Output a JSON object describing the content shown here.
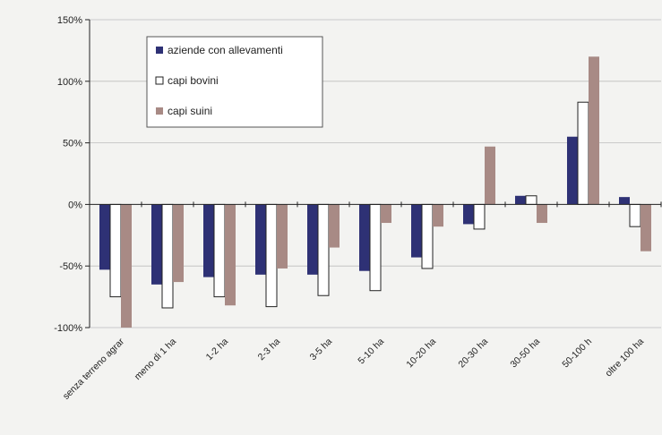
{
  "chart_data": {
    "type": "bar",
    "categories": [
      "senza terreno agrar",
      "meno di 1 ha",
      "1-2 ha",
      "2-3 ha",
      "3-5 ha",
      "5-10 ha",
      "10-20 ha",
      "20-30 ha",
      "30-50 ha",
      "50-100 h",
      "oltre 100 ha"
    ],
    "series": [
      {
        "name": "aziende con allevamenti",
        "color": "#2e3175",
        "values": [
          -53,
          -65,
          -59,
          -57,
          -57,
          -54,
          -43,
          -16,
          7,
          55,
          6
        ]
      },
      {
        "name": "capi bovini",
        "color": "#ffffff",
        "values": [
          -75,
          -84,
          -75,
          -83,
          -74,
          -70,
          -52,
          -20,
          7,
          83,
          -18
        ]
      },
      {
        "name": "capi suini",
        "color": "#a88a85",
        "values": [
          -100,
          -63,
          -82,
          -52,
          -35,
          -15,
          -18,
          47,
          -15,
          120,
          -38
        ]
      }
    ],
    "yticks": [
      "150%",
      "100%",
      "50%",
      "0%",
      "-50%",
      "-100%"
    ],
    "ylim": [
      -100,
      150
    ],
    "grid": true,
    "legend_position": "top-left"
  }
}
